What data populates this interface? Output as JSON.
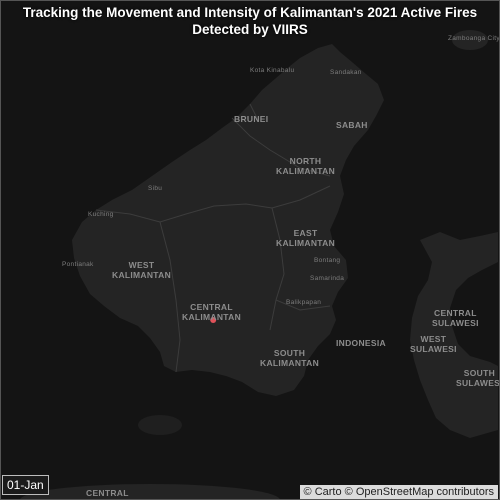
{
  "title": {
    "line1": "Tracking the Movement and Intensity of Kalimantan's 2021 Active Fires",
    "line2": "Detected by VIIRS"
  },
  "date_label": "01-Jan",
  "attribution": {
    "carto": "© Carto",
    "osm": "© OpenStreetMap contributors"
  },
  "map_labels": {
    "north_kalimantan": "NORTH\nKALIMANTAN",
    "east_kalimantan": "EAST\nKALIMANTAN",
    "west_kalimantan": "WEST\nKALIMANTAN",
    "central_kalimantan": "CENTRAL\nKALIMANTAN",
    "south_kalimantan": "SOUTH\nKALIMANTAN",
    "central_sulawesi": "CENTRAL\nSULAWESI",
    "west_sulawesi": "WEST\nSULAWESI",
    "south_sulawesi": "SOUTH\nSULAWESI",
    "sabah": "SABAH",
    "brunei": "BRUNEI",
    "indonesia": "INDONESIA",
    "central_bottom": "CENTRAL",
    "sandakan": "Sandakan",
    "kota_kinabalu": "Kota Kinabalu",
    "zamboanga": "Zamboanga City",
    "balikpapan": "Balikpapan",
    "samarinda": "Samarinda",
    "bontang": "Bontang",
    "sibu": "Sibu",
    "pontianak": "Pontianak",
    "kuching": "Kuching"
  },
  "fires": [
    {
      "lon": 115.75,
      "lat": -2.1,
      "color": "#e0525a"
    }
  ],
  "colors": {
    "background": "#141414",
    "land": "#242424",
    "border": "#3c3c3c",
    "fire": "#e0525a"
  }
}
